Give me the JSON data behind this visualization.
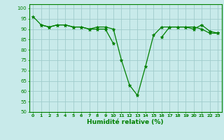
{
  "x": [
    0,
    1,
    2,
    3,
    4,
    5,
    6,
    7,
    8,
    9,
    10,
    11,
    12,
    13,
    14,
    15,
    16,
    17,
    18,
    19,
    20,
    21,
    22,
    23
  ],
  "line1": [
    96,
    92,
    91,
    92,
    92,
    91,
    91,
    90,
    91,
    91,
    90,
    75,
    63,
    58,
    72,
    87,
    91,
    91,
    91,
    91,
    90,
    92,
    89,
    88
  ],
  "line2": [
    null,
    92,
    91,
    92,
    92,
    91,
    91,
    90,
    90,
    90,
    83,
    null,
    null,
    null,
    null,
    null,
    86,
    91,
    91,
    91,
    91,
    90,
    88,
    88
  ],
  "line_color": "#008000",
  "marker": "*",
  "xlabel": "Humidité relative (%)",
  "ylim": [
    50,
    102
  ],
  "xlim": [
    -0.5,
    23.5
  ],
  "yticks": [
    50,
    55,
    60,
    65,
    70,
    75,
    80,
    85,
    90,
    95,
    100
  ],
  "xticks": [
    0,
    1,
    2,
    3,
    4,
    5,
    6,
    7,
    8,
    9,
    10,
    11,
    12,
    13,
    14,
    15,
    16,
    17,
    18,
    19,
    20,
    21,
    22,
    23
  ],
  "background_color": "#c8eaea",
  "grid_color": "#a0cccc"
}
